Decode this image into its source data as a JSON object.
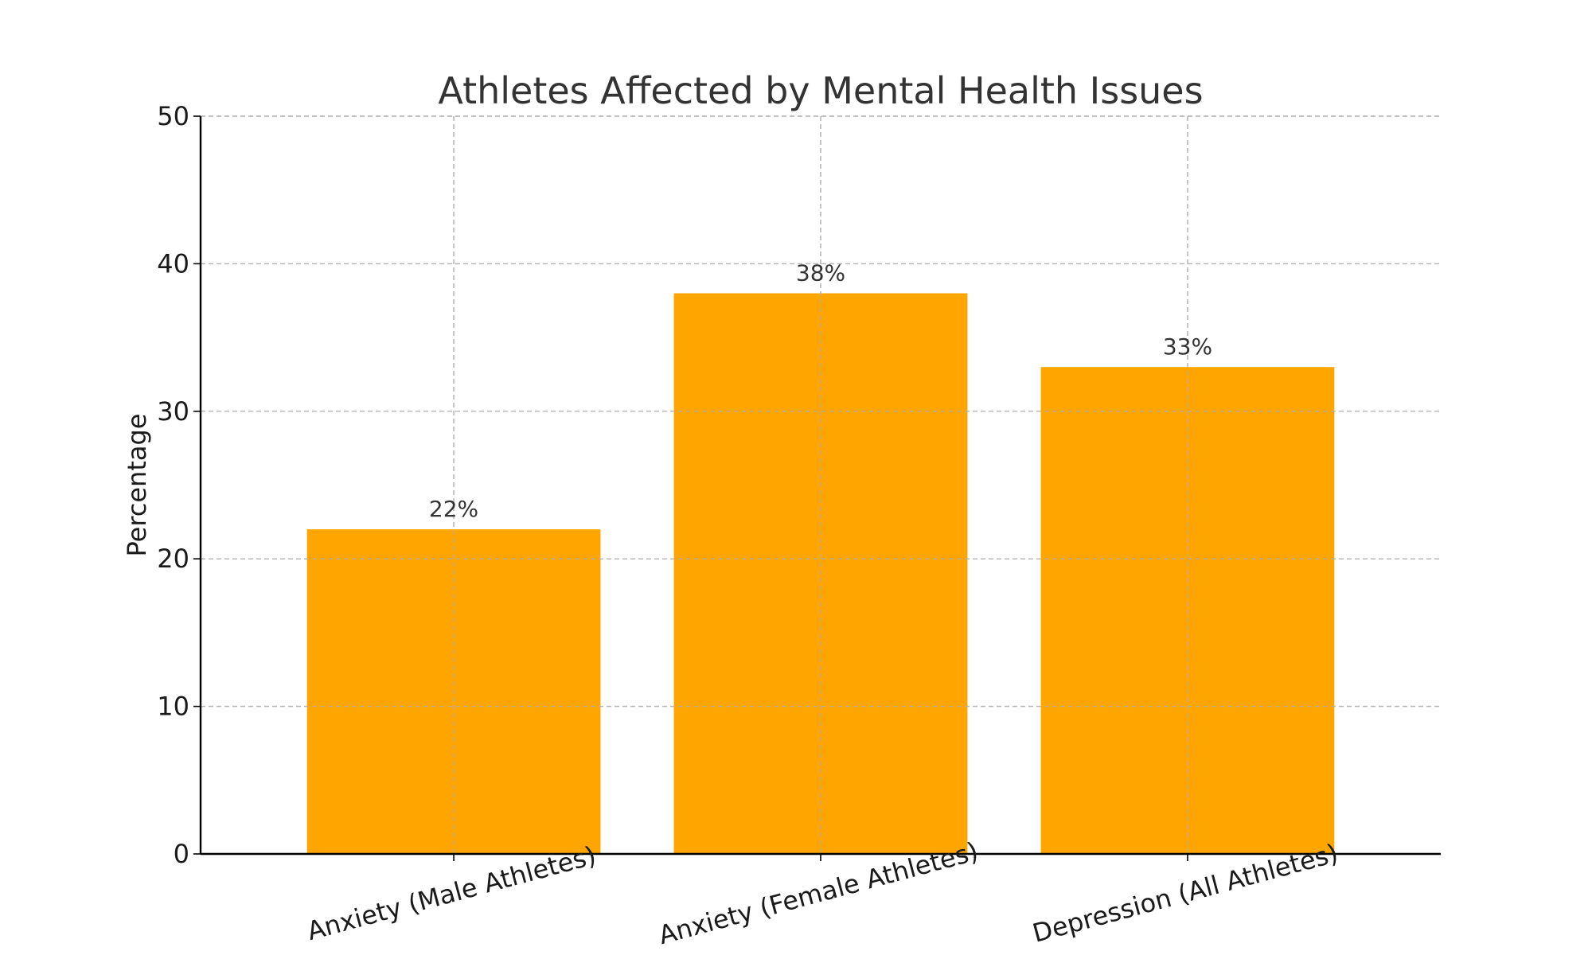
{
  "chart_data": {
    "type": "bar",
    "title": "Athletes Affected by Mental Health Issues",
    "xlabel": "",
    "ylabel": "Percentage",
    "categories": [
      "Anxiety (Male Athletes)",
      "Anxiety (Female Athletes)",
      "Depression (All Athletes)"
    ],
    "values": [
      22,
      38,
      33
    ],
    "value_labels": [
      "22%",
      "38%",
      "33%"
    ],
    "ylim": [
      0,
      50
    ],
    "yticks": [
      0,
      10,
      20,
      30,
      40,
      50
    ],
    "grid": true,
    "bar_color": "#FFA500",
    "category_label_rotation": -15
  }
}
